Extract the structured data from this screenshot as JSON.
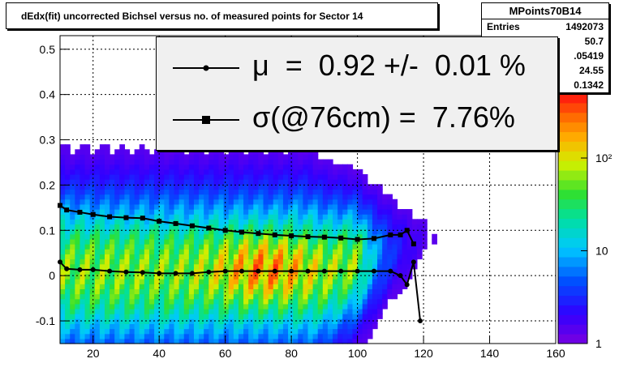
{
  "title": "dEdx(fit) uncorrected Bichsel versus no. of measured points for Sector 14",
  "stats": {
    "name": "MPoints70B14",
    "rows": [
      {
        "label": "Entries",
        "value": "1492073"
      },
      {
        "label": "",
        "value": "50.7"
      },
      {
        "label": "",
        "value": ".05419"
      },
      {
        "label": "",
        "value": "24.55"
      },
      {
        "label": "",
        "value": "0.1342"
      }
    ]
  },
  "legend": {
    "mu_text": "μ  =  0.92 +/-  0.01 %",
    "sigma_text": "σ(@76cm) =  7.76%"
  },
  "chart_data": {
    "type": "heatmap",
    "title": "dEdx(fit) uncorrected Bichsel versus no. of measured points for Sector 14",
    "xlim": [
      10,
      160
    ],
    "ylim": [
      -0.15,
      0.53
    ],
    "xticks": [
      20,
      40,
      60,
      80,
      100,
      120,
      140,
      160
    ],
    "yticks": [
      -0.1,
      0,
      0.1,
      0.2,
      0.3,
      0.4,
      0.5
    ],
    "xtick_labels": [
      "20",
      "40",
      "60",
      "80",
      "100",
      "120",
      "140",
      "160"
    ],
    "ytick_labels": [
      "-0.1",
      "0",
      "0.1",
      "0.2",
      "0.3",
      "0.4",
      "0.5"
    ],
    "grid": true,
    "z_scale": "log",
    "z_range": [
      1,
      500
    ],
    "colorbar_labels": [
      "1",
      "10",
      "10²"
    ],
    "colorbar_values": [
      1,
      10,
      100
    ],
    "peak_region": {
      "x": 72,
      "y": 0.02
    },
    "series": [
      {
        "marker": "circle",
        "x": [
          10,
          12,
          16,
          20,
          25,
          30,
          35,
          40,
          45,
          50,
          55,
          60,
          65,
          70,
          75,
          80,
          85,
          90,
          95,
          100,
          105,
          110,
          113,
          115,
          117,
          119
        ],
        "y": [
          0.03,
          0.015,
          0.013,
          0.013,
          0.01,
          0.008,
          0.007,
          0.005,
          0.005,
          0.005,
          0.008,
          0.01,
          0.01,
          0.01,
          0.01,
          0.01,
          0.01,
          0.01,
          0.01,
          0.01,
          0.01,
          0.01,
          0.0,
          -0.02,
          0.03,
          -0.1
        ]
      },
      {
        "marker": "square",
        "x": [
          10,
          12,
          16,
          20,
          25,
          30,
          35,
          40,
          45,
          50,
          55,
          60,
          65,
          70,
          75,
          80,
          85,
          90,
          95,
          100,
          105,
          110,
          113,
          115,
          117
        ],
        "y": [
          0.155,
          0.145,
          0.14,
          0.135,
          0.13,
          0.128,
          0.127,
          0.12,
          0.115,
          0.11,
          0.105,
          0.1,
          0.096,
          0.093,
          0.09,
          0.088,
          0.086,
          0.085,
          0.083,
          0.08,
          0.082,
          0.09,
          0.09,
          0.1,
          0.07
        ]
      }
    ]
  }
}
